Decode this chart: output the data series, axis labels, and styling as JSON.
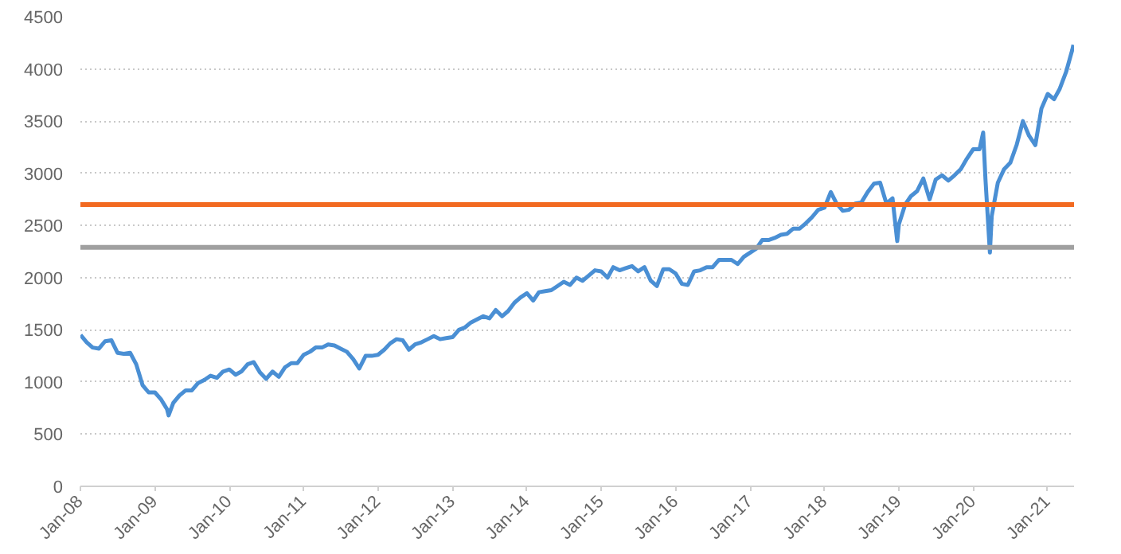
{
  "chart_data": {
    "type": "line",
    "x": [
      "2008-01-02",
      "2008-02",
      "2008-03",
      "2008-04",
      "2008-05",
      "2008-06",
      "2008-07",
      "2008-08",
      "2008-09",
      "2008-10",
      "2008-11",
      "2008-12",
      "2009-01",
      "2009-02",
      "2009-03",
      "2009-03-09",
      "2009-04",
      "2009-05",
      "2009-06",
      "2009-07",
      "2009-08",
      "2009-09",
      "2009-10",
      "2009-11",
      "2009-12",
      "2010-01",
      "2010-02",
      "2010-03",
      "2010-04",
      "2010-05",
      "2010-06",
      "2010-07",
      "2010-08",
      "2010-09",
      "2010-10",
      "2010-11",
      "2010-12",
      "2011-01",
      "2011-02",
      "2011-03",
      "2011-04",
      "2011-05",
      "2011-06",
      "2011-07",
      "2011-08",
      "2011-09",
      "2011-10",
      "2011-11",
      "2011-12",
      "2012-01",
      "2012-02",
      "2012-03",
      "2012-04",
      "2012-05",
      "2012-06",
      "2012-07",
      "2012-08",
      "2012-09",
      "2012-10",
      "2012-11",
      "2012-12",
      "2013-01",
      "2013-02",
      "2013-03",
      "2013-04",
      "2013-05",
      "2013-06",
      "2013-07",
      "2013-08",
      "2013-09",
      "2013-10",
      "2013-11",
      "2013-12",
      "2014-01",
      "2014-02",
      "2014-03",
      "2014-04",
      "2014-05",
      "2014-06",
      "2014-07",
      "2014-08",
      "2014-09",
      "2014-10",
      "2014-11",
      "2014-12",
      "2015-01",
      "2015-02",
      "2015-03",
      "2015-04",
      "2015-05",
      "2015-06",
      "2015-07",
      "2015-08",
      "2015-09",
      "2015-10",
      "2015-11",
      "2015-12",
      "2016-01",
      "2016-02",
      "2016-03",
      "2016-04",
      "2016-05",
      "2016-06",
      "2016-07",
      "2016-08",
      "2016-09",
      "2016-10",
      "2016-11",
      "2016-12",
      "2017-01",
      "2017-02",
      "2017-03",
      "2017-04",
      "2017-05",
      "2017-06",
      "2017-07",
      "2017-08",
      "2017-09",
      "2017-10",
      "2017-11",
      "2017-12",
      "2018-01",
      "2018-02",
      "2018-03",
      "2018-04",
      "2018-05",
      "2018-06",
      "2018-07",
      "2018-08",
      "2018-09",
      "2018-10",
      "2018-11",
      "2018-12",
      "2018-12-24",
      "2019-01",
      "2019-02",
      "2019-03",
      "2019-04",
      "2019-05",
      "2019-06",
      "2019-07",
      "2019-08",
      "2019-09",
      "2019-10",
      "2019-11",
      "2019-12",
      "2020-01",
      "2020-02",
      "2020-02-19",
      "2020-03",
      "2020-03-23",
      "2020-04",
      "2020-05",
      "2020-06",
      "2020-07",
      "2020-08",
      "2020-09",
      "2020-10",
      "2020-11",
      "2020-12",
      "2021-01",
      "2021-02",
      "2021-03",
      "2021-04",
      "2021-05",
      "2021-05-07"
    ],
    "series": [
      {
        "color": "#4a8fd4",
        "values": [
          1450,
          1380,
          1330,
          1320,
          1390,
          1400,
          1280,
          1270,
          1280,
          1170,
          970,
          900,
          900,
          830,
          740,
          680,
          800,
          870,
          920,
          920,
          990,
          1020,
          1060,
          1040,
          1100,
          1120,
          1070,
          1100,
          1170,
          1190,
          1090,
          1030,
          1100,
          1050,
          1140,
          1180,
          1180,
          1260,
          1290,
          1330,
          1330,
          1360,
          1350,
          1320,
          1290,
          1220,
          1130,
          1250,
          1250,
          1260,
          1310,
          1370,
          1410,
          1400,
          1310,
          1360,
          1380,
          1410,
          1440,
          1410,
          1420,
          1430,
          1500,
          1520,
          1570,
          1600,
          1630,
          1610,
          1690,
          1630,
          1680,
          1760,
          1810,
          1850,
          1780,
          1860,
          1870,
          1880,
          1920,
          1960,
          1930,
          2000,
          1970,
          2020,
          2070,
          2060,
          2000,
          2100,
          2070,
          2090,
          2110,
          2060,
          2100,
          1970,
          1920,
          2080,
          2080,
          2040,
          1940,
          1930,
          2060,
          2070,
          2100,
          2100,
          2170,
          2170,
          2170,
          2130,
          2200,
          2240,
          2280,
          2360,
          2360,
          2380,
          2410,
          2420,
          2470,
          2470,
          2520,
          2580,
          2650,
          2670,
          2820,
          2710,
          2640,
          2650,
          2710,
          2720,
          2820,
          2900,
          2910,
          2710,
          2760,
          2350,
          2510,
          2700,
          2780,
          2830,
          2950,
          2750,
          2940,
          2980,
          2930,
          2980,
          3040,
          3140,
          3230,
          3230,
          3390,
          2950,
          2240,
          2590,
          2910,
          3040,
          3100,
          3270,
          3500,
          3360,
          3270,
          3620,
          3760,
          3710,
          3810,
          3970,
          4180,
          4230
        ]
      }
    ],
    "ylim": [
      0,
      4500
    ],
    "yticks": [
      0,
      500,
      1000,
      1500,
      2000,
      2500,
      3000,
      3500,
      4000,
      4500
    ],
    "xlim": [
      "2008-01-01",
      "2021-05-10"
    ],
    "xticks": [
      {
        "value": "2008-01",
        "label": "Jan-08"
      },
      {
        "value": "2009-01",
        "label": "Jan-09"
      },
      {
        "value": "2010-01",
        "label": "Jan-10"
      },
      {
        "value": "2011-01",
        "label": "Jan-11"
      },
      {
        "value": "2012-01",
        "label": "Jan-12"
      },
      {
        "value": "2013-01",
        "label": "Jan-13"
      },
      {
        "value": "2014-01",
        "label": "Jan-14"
      },
      {
        "value": "2015-01",
        "label": "Jan-15"
      },
      {
        "value": "2016-01",
        "label": "Jan-16"
      },
      {
        "value": "2017-01",
        "label": "Jan-17"
      },
      {
        "value": "2018-01",
        "label": "Jan-18"
      },
      {
        "value": "2019-01",
        "label": "Jan-19"
      },
      {
        "value": "2020-01",
        "label": "Jan-20"
      },
      {
        "value": "2021-01",
        "label": "Jan-21"
      }
    ],
    "ref_lines": [
      {
        "axis": "y",
        "value": 2700,
        "color": "#f26a21"
      },
      {
        "axis": "y",
        "value": 2290,
        "color": "#a0a0a0"
      }
    ],
    "grid": "y",
    "marker": "none",
    "line_style": "solid"
  }
}
